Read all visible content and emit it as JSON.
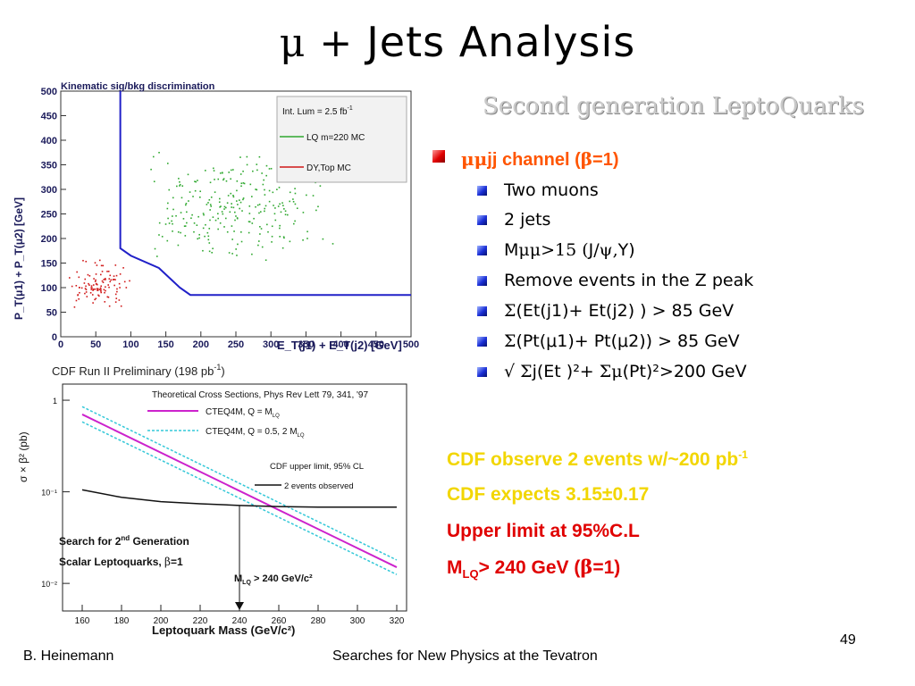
{
  "slide": {
    "title_symbol": "μ",
    "title_plus": " + ",
    "title_text": "Jets Analysis",
    "subtitle": "Second generation LeptoQuarks",
    "page_number": "49",
    "footer_left": "B. Heinemann",
    "footer_center": "Searches for New Physics at the Tevatron"
  },
  "channel": {
    "head_sym": "μμ",
    "head_mid": "jj channel (",
    "head_beta": "β",
    "head_tail": "=1)",
    "items": [
      {
        "text": "Two muons"
      },
      {
        "text": "2 jets"
      },
      {
        "pre": "M",
        "sym": "μμ>15 (",
        "post": "J/",
        "sym2": "ψ,",
        "post2": "Y)"
      },
      {
        "text": "Remove events in the Z peak"
      },
      {
        "sym": "Σ",
        "post": "(Et(j1)+ Et(j2) ) > 85 GeV"
      },
      {
        "sym": "Σ",
        "post": "(Pt(μ1)+ Pt(μ2)) > 85 GeV"
      },
      {
        "pre": "√ ",
        "sym": "Σ",
        "post": "j(Et )²+ ",
        "sym2": "Σμ",
        "post2": "(Pt)²>200 GeV"
      }
    ]
  },
  "results": {
    "observe": "CDF observe 2 events w/~200 pb",
    "observe_sup": "-1",
    "expects": "CDF expects  3.15±0.17",
    "upper_limit": "Upper limit at 95%C.L",
    "mlq_pre": "M",
    "mlq_sub": "LQ",
    "mlq_mid": "> 240 GeV (",
    "mlq_beta": "β",
    "mlq_tail": "=1)"
  },
  "chart_data": [
    {
      "type": "scatter",
      "title": "Kinematic sig/bkg discrimination",
      "xlabel": "E_T(j1) + E_T(j2) [GeV]",
      "ylabel": "P_T(μ1) + P_T(μ2) [GeV]",
      "xlim": [
        0,
        500
      ],
      "ylim": [
        0,
        500
      ],
      "x_ticks": [
        "0",
        "50",
        "100",
        "150",
        "200",
        "250",
        "300",
        "350",
        "400",
        "450",
        "500"
      ],
      "y_ticks": [
        "0",
        "50",
        "100",
        "150",
        "200",
        "250",
        "300",
        "350",
        "400",
        "450",
        "500"
      ],
      "legend": {
        "lum_label": "Int. Lum = 2.5 fb",
        "lum_sup": "-1",
        "entries": [
          "LQ m=220 MC",
          "DY,Top MC"
        ]
      },
      "legend_placement": "top-right",
      "colors": {
        "signal": "#2fa82f",
        "background": "#d01818",
        "cut": "#2020c8"
      },
      "cut_line": [
        [
          85,
          500
        ],
        [
          85,
          180
        ],
        [
          100,
          165
        ],
        [
          140,
          140
        ],
        [
          170,
          100
        ],
        [
          185,
          85
        ],
        [
          500,
          85
        ]
      ],
      "series": [
        {
          "name": "LQ m=220 MC",
          "color": "#2fa82f",
          "center": [
            250,
            270
          ],
          "spread": [
            110,
            90
          ],
          "count": 260
        },
        {
          "name": "DY,Top MC",
          "color": "#d01818",
          "center": [
            55,
            110
          ],
          "spread": [
            35,
            40
          ],
          "count": 110
        }
      ]
    },
    {
      "type": "line",
      "title": "CDF Run II Preliminary (198 pb",
      "title_sup": "-1",
      "title_close": ")",
      "xlabel": "Leptoquark Mass (GeV/c²)",
      "ylabel": "σ × β² (pb)",
      "log_y": true,
      "xlim": [
        150,
        325
      ],
      "ylim": [
        0.005,
        1.5
      ],
      "x_ticks": [
        "160",
        "180",
        "200",
        "220",
        "240",
        "260",
        "280",
        "300",
        "320"
      ],
      "y_ticks": [
        "1",
        "10⁻¹",
        "10⁻²"
      ],
      "annotation": "Theoretical Cross Sections, Phys Rev Lett 79, 341, '97",
      "series": [
        {
          "name": "CTEQ4M, Q = M",
          "name_sub": "LQ",
          "color": "#cc22cc",
          "x": [
            160,
            320
          ],
          "y": [
            0.7,
            0.015
          ]
        },
        {
          "name": "CTEQ4M, Q = 0.5, 2 M",
          "name_sub": "LQ",
          "color": "#33c8d8",
          "x": [
            160,
            320
          ],
          "y": [
            0.85,
            0.018
          ],
          "band": [
            [
              160,
              320
            ],
            [
              0.58,
              0.0125
            ]
          ]
        },
        {
          "name": "2 events observed",
          "color": "#111111",
          "x": [
            160,
            180,
            200,
            220,
            240,
            260,
            280,
            300,
            320
          ],
          "y": [
            0.105,
            0.087,
            0.078,
            0.074,
            0.071,
            0.069,
            0.068,
            0.068,
            0.068
          ]
        }
      ],
      "upper_limit_label": "CDF upper limit, 95% CL",
      "text_block": [
        "Search for 2",
        "nd",
        " Generation",
        "Scalar Leptoquarks, ",
        "β",
        "=1"
      ],
      "limit_label": "M",
      "limit_sub": "LQ",
      "limit_tail": " > 240 GeV/c²",
      "limit_mass": 240
    }
  ]
}
